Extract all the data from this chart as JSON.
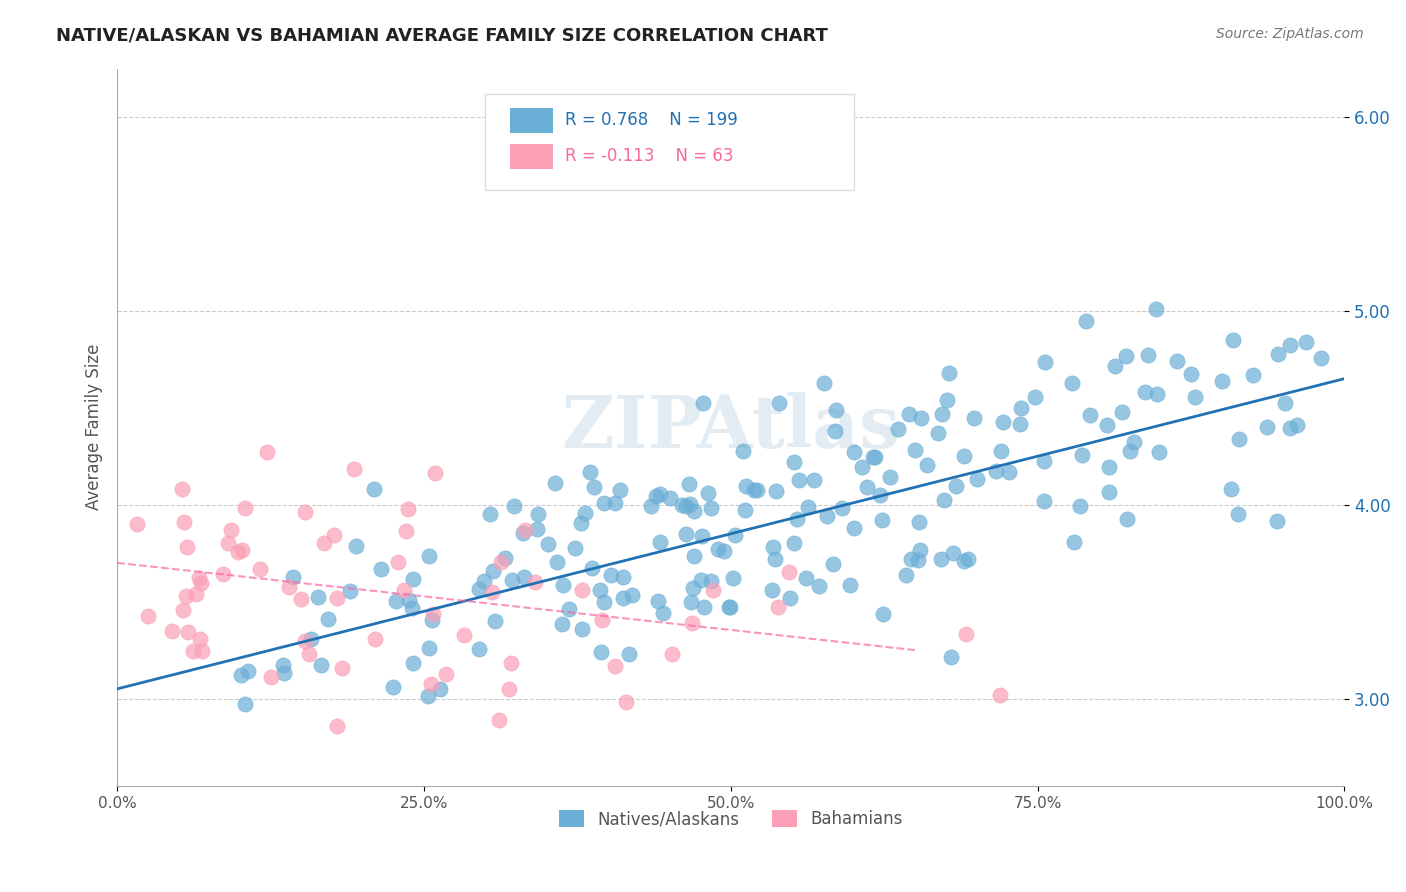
{
  "title": "NATIVE/ALASKAN VS BAHAMIAN AVERAGE FAMILY SIZE CORRELATION CHART",
  "source_text": "Source: ZipAtlas.com",
  "xlabel": "",
  "ylabel": "Average Family Size",
  "xmin": 0.0,
  "xmax": 1.0,
  "ymin": 2.55,
  "ymax": 6.25,
  "yticks": [
    3.0,
    4.0,
    5.0,
    6.0
  ],
  "xticks": [
    0.0,
    0.25,
    0.5,
    0.75,
    1.0
  ],
  "xticklabels": [
    "0.0%",
    "25.0%",
    "50.0%",
    "75.0%",
    "100.0%"
  ],
  "legend_r1": "R = 0.768",
  "legend_n1": "N = 199",
  "legend_r2": "R = -0.113",
  "legend_n2": "N = 63",
  "color_blue": "#6baed6",
  "color_pink": "#fa9fb5",
  "color_blue_line": "#2171b5",
  "color_pink_line": "#f768a1",
  "watermark": "ZIPAtlas",
  "label1": "Natives/Alaskans",
  "label2": "Bahamians",
  "blue_R": 0.768,
  "pink_R": -0.113,
  "blue_N": 199,
  "pink_N": 63,
  "blue_line_x0": 0.0,
  "blue_line_y0": 3.05,
  "blue_line_x1": 1.0,
  "blue_line_y1": 4.65,
  "pink_line_x0": 0.0,
  "pink_line_y0": 3.7,
  "pink_line_x1": 0.65,
  "pink_line_y1": 3.25
}
